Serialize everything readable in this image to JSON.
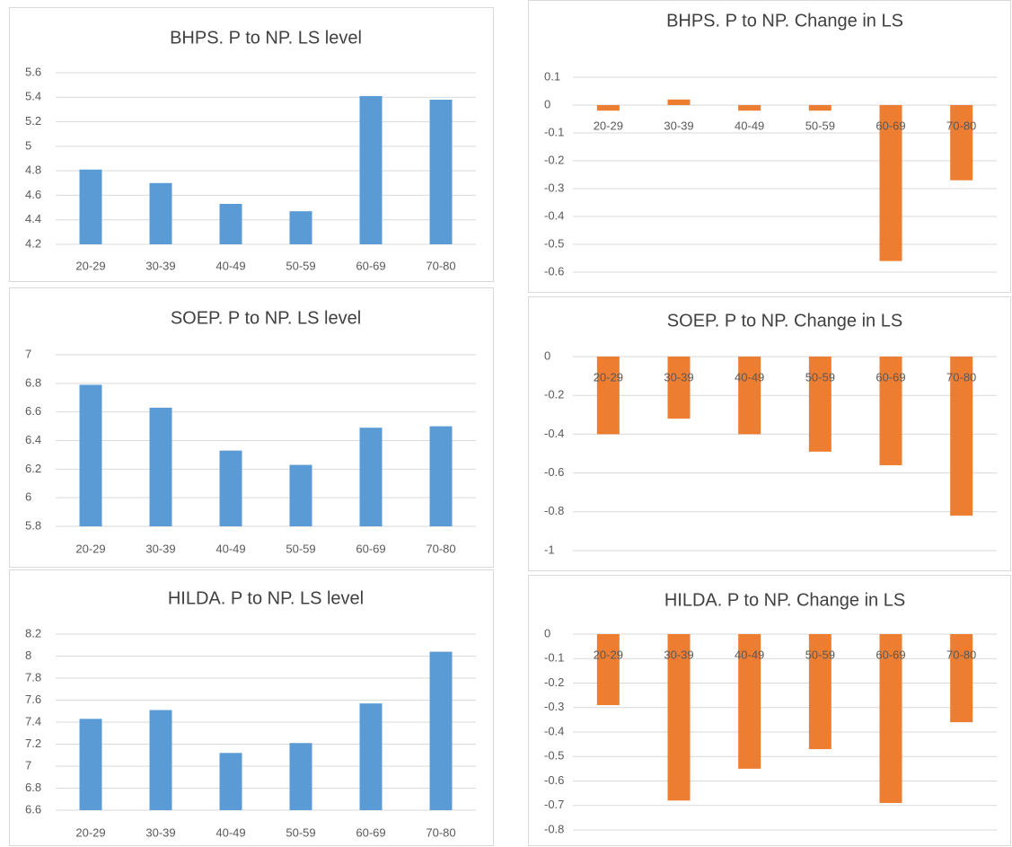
{
  "chart_data": [
    {
      "type": "bar",
      "title": "BHPS. P to NP. LS level",
      "categories": [
        "20-29",
        "30-39",
        "40-49",
        "50-59",
        "60-69",
        "70-80"
      ],
      "values": [
        4.81,
        4.7,
        4.53,
        4.47,
        5.41,
        5.38
      ],
      "color": "#5b9bd5",
      "ylim": [
        4.2,
        5.6
      ],
      "yticks": [
        4.2,
        4.4,
        4.6,
        4.8,
        5,
        5.2,
        5.4,
        5.6
      ],
      "grid": true
    },
    {
      "type": "bar",
      "title": "BHPS. P to NP. Change in LS",
      "categories": [
        "20-29",
        "30-39",
        "40-49",
        "50-59",
        "60-69",
        "70-80"
      ],
      "values": [
        -0.02,
        0.02,
        -0.02,
        -0.02,
        -0.56,
        -0.27
      ],
      "color": "#ed7d31",
      "ylim": [
        -0.6,
        0.1
      ],
      "yticks": [
        -0.6,
        -0.5,
        -0.4,
        -0.3,
        -0.2,
        -0.1,
        0,
        0.1
      ],
      "grid": true
    },
    {
      "type": "bar",
      "title": "SOEP. P to NP. LS level",
      "categories": [
        "20-29",
        "30-39",
        "40-49",
        "50-59",
        "60-69",
        "70-80"
      ],
      "values": [
        6.79,
        6.63,
        6.33,
        6.23,
        6.49,
        6.5
      ],
      "color": "#5b9bd5",
      "ylim": [
        5.8,
        7
      ],
      "yticks": [
        5.8,
        6,
        6.2,
        6.4,
        6.6,
        6.8,
        7
      ],
      "grid": true
    },
    {
      "type": "bar",
      "title": "SOEP. P to NP. Change in LS",
      "categories": [
        "20-29",
        "30-39",
        "40-49",
        "50-59",
        "60-69",
        "70-80"
      ],
      "values": [
        -0.4,
        -0.32,
        -0.4,
        -0.49,
        -0.56,
        -0.82
      ],
      "color": "#ed7d31",
      "ylim": [
        -1,
        0
      ],
      "yticks": [
        -1,
        -0.8,
        -0.6,
        -0.4,
        -0.2,
        0
      ],
      "grid": true
    },
    {
      "type": "bar",
      "title": "HILDA. P to NP. LS level",
      "categories": [
        "20-29",
        "30-39",
        "40-49",
        "50-59",
        "60-69",
        "70-80"
      ],
      "values": [
        7.43,
        7.51,
        7.12,
        7.21,
        7.57,
        8.04
      ],
      "color": "#5b9bd5",
      "ylim": [
        6.6,
        8.2
      ],
      "yticks": [
        6.6,
        6.8,
        7,
        7.2,
        7.4,
        7.6,
        7.8,
        8,
        8.2
      ],
      "grid": true
    },
    {
      "type": "bar",
      "title": "HILDA. P to NP. Change in LS",
      "categories": [
        "20-29",
        "30-39",
        "40-49",
        "50-59",
        "60-69",
        "70-80"
      ],
      "values": [
        -0.29,
        -0.68,
        -0.55,
        -0.47,
        -0.69,
        -0.36
      ],
      "color": "#ed7d31",
      "ylim": [
        -0.8,
        0
      ],
      "yticks": [
        -0.8,
        -0.7,
        -0.6,
        -0.5,
        -0.4,
        -0.3,
        -0.2,
        -0.1,
        0
      ],
      "grid": true
    }
  ]
}
